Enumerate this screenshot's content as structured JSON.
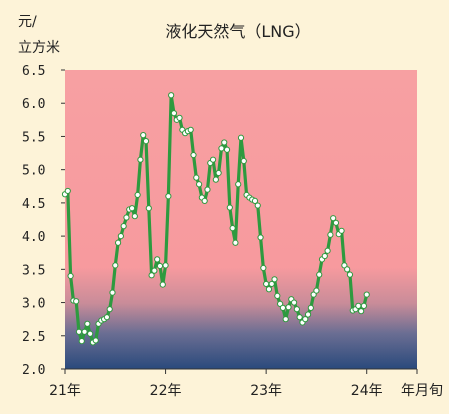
{
  "chart_data": {
    "type": "line",
    "title": "液化天然气（LNG）",
    "ylabel_line1": "元/",
    "ylabel_line2": "立方米",
    "xlabel": "年月旬",
    "ylim": [
      2.0,
      6.5
    ],
    "y_ticks": [
      "2.0",
      "2.5",
      "3.0",
      "3.5",
      "4.0",
      "4.5",
      "5.0",
      "5.5",
      "6.0",
      "6.5"
    ],
    "x_ticks": [
      "21年",
      "22年",
      "23年",
      "24年"
    ],
    "x_range": [
      0,
      126
    ],
    "x_tick_positions": [
      0,
      36,
      72,
      108
    ],
    "grid": false,
    "colors": {
      "line": "#2e9a3f",
      "marker_fill": "#ffffff",
      "bg_top": "#f7a0a2",
      "bg_bottom": "#2a4a7c",
      "page": "#fdf3d8"
    },
    "series": [
      {
        "values": [
          4.63,
          4.68,
          3.4,
          3.03,
          3.02,
          2.56,
          2.42,
          2.56,
          2.68,
          2.53,
          2.4,
          2.43,
          2.68,
          2.73,
          2.75,
          2.78,
          2.9,
          3.15,
          3.56,
          3.9,
          4.0,
          4.15,
          4.28,
          4.4,
          4.42,
          4.3,
          4.62,
          5.15,
          5.52,
          5.43,
          4.42,
          3.41,
          3.48,
          3.65,
          3.55,
          3.27,
          3.56,
          4.6,
          6.12,
          5.85,
          5.75,
          5.78,
          5.6,
          5.55,
          5.58,
          5.6,
          5.22,
          4.88,
          4.78,
          4.58,
          4.53,
          4.7,
          5.1,
          5.15,
          4.85,
          4.95,
          5.32,
          5.41,
          5.3,
          4.43,
          4.12,
          3.9,
          4.78,
          5.48,
          5.13,
          4.62,
          4.58,
          4.55,
          4.53,
          4.46,
          3.98,
          3.52,
          3.28,
          3.2,
          3.28,
          3.35,
          3.1,
          2.98,
          2.92,
          2.75,
          2.93,
          3.05,
          3.0,
          2.9,
          2.78,
          2.7,
          2.75,
          2.82,
          2.92,
          3.12,
          3.18,
          3.42,
          3.65,
          3.7,
          3.78,
          4.02,
          4.27,
          4.2,
          4.03,
          4.08,
          3.56,
          3.5,
          3.42,
          2.88,
          2.9,
          2.95,
          2.87,
          2.95,
          3.12
        ]
      }
    ]
  }
}
